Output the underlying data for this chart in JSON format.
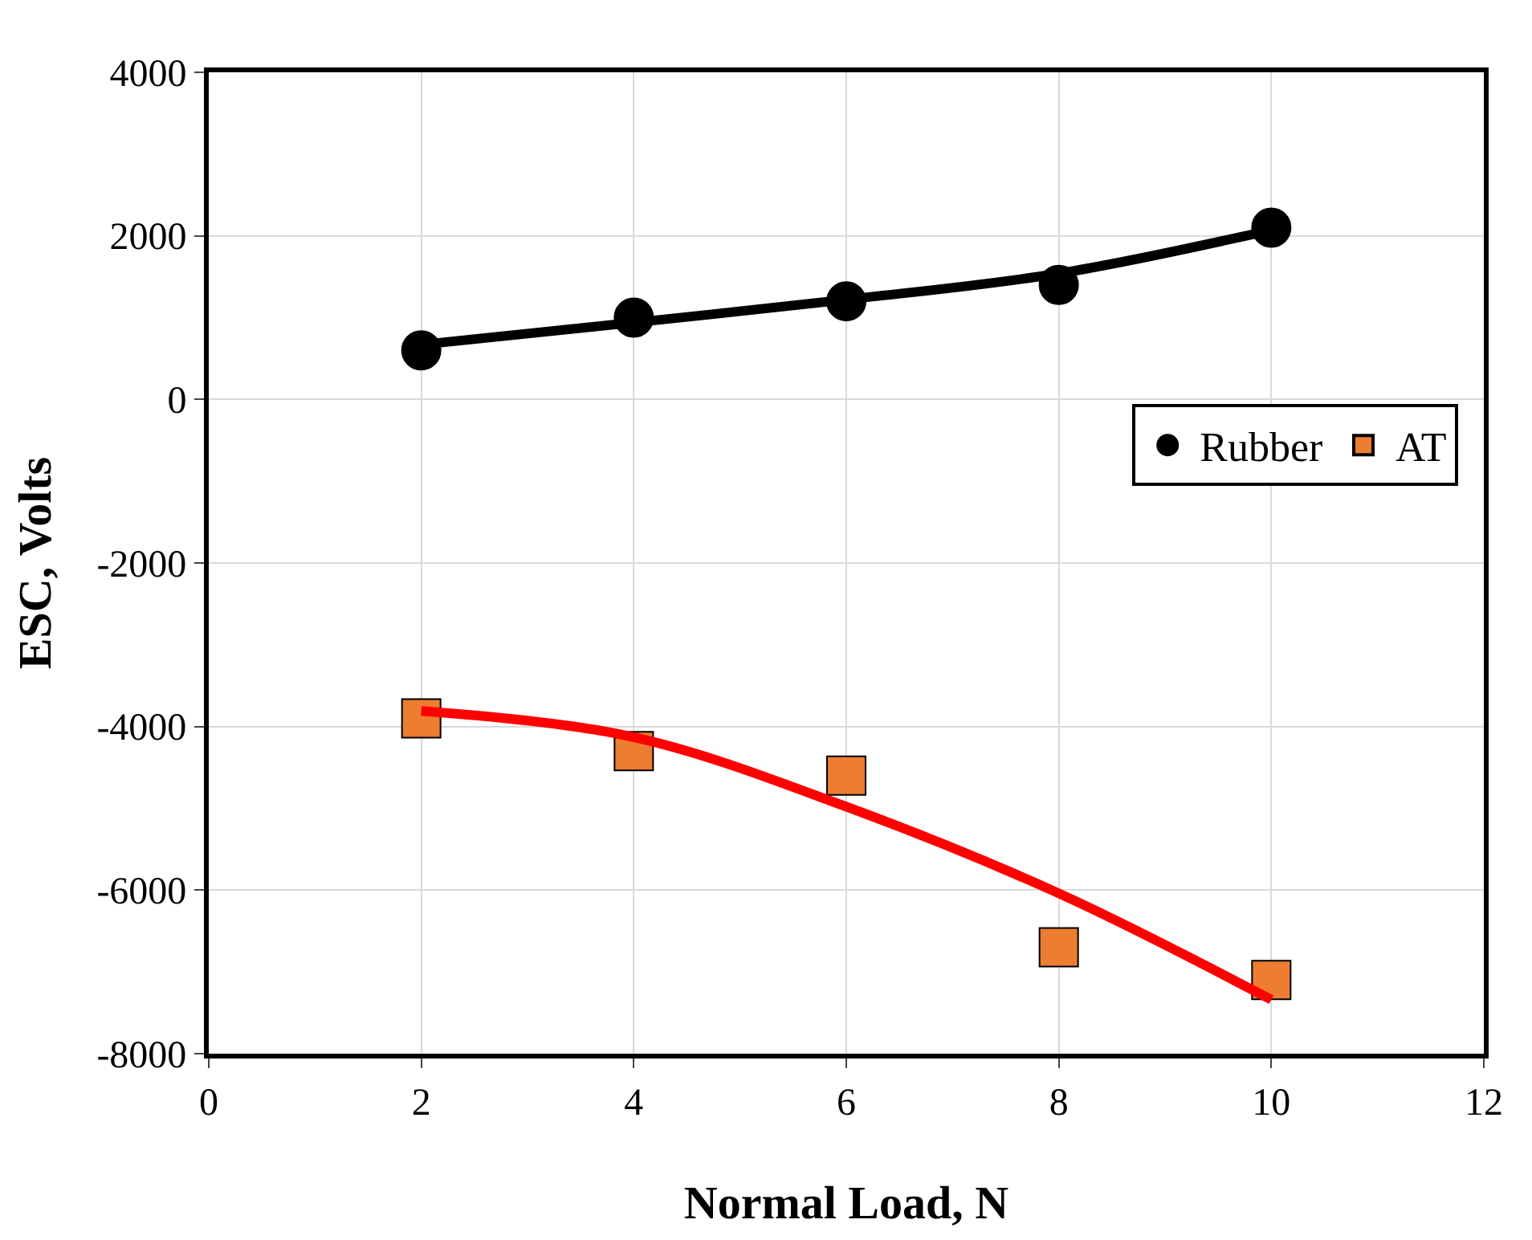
{
  "chart_data": {
    "type": "scatter",
    "xlabel": "Normal Load, N",
    "ylabel": "ESC, Volts",
    "xlim": [
      0,
      12
    ],
    "xticks": [
      0,
      2,
      4,
      6,
      8,
      10,
      12
    ],
    "ylim": [
      -8000,
      4000
    ],
    "yticks": [
      -8000,
      -6000,
      -4000,
      -2000,
      0,
      2000,
      4000
    ],
    "grid": true,
    "legend": "right",
    "series": [
      {
        "name": "Rubber",
        "color": "#000000",
        "marker": "circle",
        "x": [
          2,
          4,
          6,
          8,
          10
        ],
        "values": [
          600,
          1000,
          1200,
          1400,
          2100
        ]
      },
      {
        "name": "AT",
        "color": "#ed7d31",
        "marker": "square",
        "x": [
          2,
          4,
          6,
          8,
          10
        ],
        "values": [
          -3900,
          -4300,
          -4600,
          -6700,
          -7100
        ]
      },
      {
        "type": "line",
        "color": "#000000",
        "x": [
          2,
          4,
          6,
          8,
          10
        ],
        "values": [
          670,
          940,
          1220,
          1540,
          2070
        ]
      },
      {
        "type": "line",
        "color": "#ff0000",
        "x": [
          2,
          4,
          6,
          8,
          10
        ],
        "values": [
          -3810,
          -4130,
          -4980,
          -6040,
          -7340
        ]
      }
    ]
  }
}
